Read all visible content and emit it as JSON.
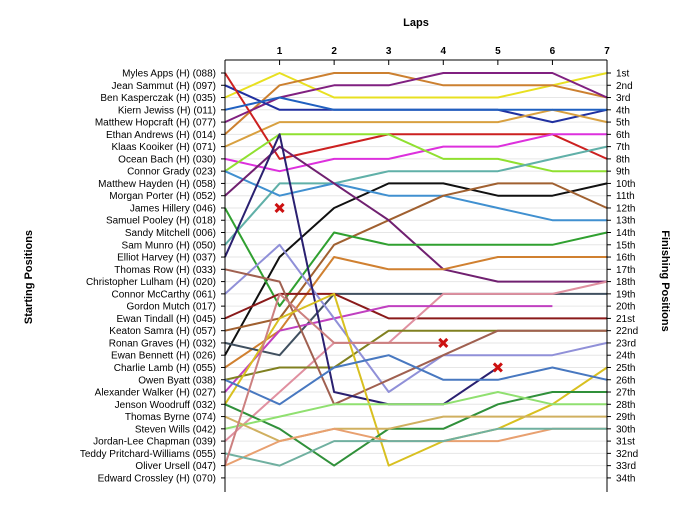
{
  "chart_data": {
    "type": "line",
    "title": "",
    "xlabel": "Laps",
    "ylabel_left": "Starting Positions",
    "ylabel_right": "Finishing Positions",
    "x": [
      0,
      1,
      2,
      3,
      4,
      5,
      6,
      7
    ],
    "lap_labels": [
      "1",
      "2",
      "3",
      "4",
      "5",
      "6",
      "7"
    ],
    "ylim": [
      1,
      34
    ],
    "grid": true,
    "starting_labels": [
      "Myles Apps (H) (088)",
      "Jean Sammut (H) (097)",
      "Ben Kasperczak (H) (035)",
      "Kiern Jewiss (H) (011)",
      "Matthew Hopcraft (H) (077)",
      "Ethan Andrews (H) (014)",
      "Klaas Kooiker (H) (071)",
      "Ocean Bach (H) (030)",
      "Connor Grady (023)",
      "Matthew Hayden (H) (058)",
      "Morgan Porter (H) (052)",
      "James Hillery (046)",
      "Samuel Pooley (H) (018)",
      "Sandy Mitchell (006)",
      "Sam Munro (H) (050)",
      "Elliot Harvey (H) (037)",
      "Thomas Row (H) (033)",
      "Christopher Lulham (H) (020)",
      "Connor McCarthy (061)",
      "Gordon Mutch (017)",
      "Ewan Tindall (H) (045)",
      "Keaton Samra (H) (057)",
      "Ronan Graves (H) (032)",
      "Ewan Bennett (H) (026)",
      "Charlie Lamb (H) (055)",
      "Owen Byatt (038)",
      "Alexander Walker (H) (027)",
      "Jenson Woodruff (032)",
      "Thomas Byrne (074)",
      "Steven Wills (042)",
      "Jordan-Lee Chapman (039)",
      "Teddy Pritchard-Williams (055)",
      "Oliver Ursell (047)",
      "Edward Crossley (H) (070)"
    ],
    "finishing_labels": [
      "1st",
      "2nd",
      "3rd",
      "4th",
      "5th",
      "6th",
      "7th",
      "8th",
      "9th",
      "10th",
      "11th",
      "12th",
      "13th",
      "14th",
      "15th",
      "16th",
      "17th",
      "18th",
      "19th",
      "20th",
      "21st",
      "22nd",
      "23rd",
      "24th",
      "25th",
      "26th",
      "27th",
      "28th",
      "29th",
      "30th",
      "31st",
      "32nd",
      "33rd",
      "34th"
    ],
    "series": [
      {
        "color": "#e8e020",
        "positions": [
          3,
          1,
          3,
          3,
          3,
          3,
          2,
          1
        ]
      },
      {
        "color": "#cc8030",
        "positions": [
          6,
          2,
          1,
          1,
          2,
          2,
          2,
          3
        ]
      },
      {
        "color": "#802080",
        "positions": [
          5,
          3,
          2,
          2,
          1,
          1,
          1,
          3
        ]
      },
      {
        "color": "#2030a0",
        "positions": [
          2,
          4,
          4,
          4,
          4,
          4,
          5,
          4
        ]
      },
      {
        "color": "#d8a040",
        "positions": [
          7,
          5,
          5,
          5,
          5,
          5,
          4,
          5
        ]
      },
      {
        "color": "#cc2020",
        "positions": [
          1,
          8,
          7,
          6,
          6,
          6,
          6,
          8
        ]
      },
      {
        "color": "#dd30dd",
        "positions": [
          8,
          9,
          8,
          8,
          7,
          7,
          6,
          6
        ]
      },
      {
        "color": "#90e030",
        "positions": [
          9,
          6,
          6,
          6,
          8,
          8,
          9,
          9
        ]
      },
      {
        "color": "#60b0a8",
        "positions": [
          15,
          10,
          10,
          9,
          9,
          9,
          8,
          7
        ]
      },
      {
        "color": "#101010",
        "positions": [
          24,
          16,
          12,
          10,
          10,
          11,
          11,
          10
        ]
      },
      {
        "color": "#4090d0",
        "positions": [
          9,
          11,
          10,
          11,
          11,
          12,
          13,
          13
        ]
      },
      {
        "color": "#a06030",
        "positions": [
          22,
          21,
          15,
          13,
          11,
          10,
          10,
          12
        ]
      },
      {
        "color": "#702070",
        "positions": [
          11,
          7,
          10,
          13,
          17,
          18,
          18,
          18
        ]
      },
      {
        "color": "#30a030",
        "positions": [
          12,
          20,
          14,
          15,
          15,
          15,
          15,
          14
        ]
      },
      {
        "color": "#d08030",
        "positions": [
          25,
          22,
          16,
          17,
          17,
          16,
          16,
          16
        ]
      },
      {
        "color": "#405060",
        "positions": [
          23,
          24,
          19,
          19,
          19,
          19,
          19,
          19
        ]
      },
      {
        "color": "#8a1a1a",
        "positions": [
          21,
          19,
          19,
          21,
          21,
          21,
          21,
          21
        ]
      },
      {
        "color": "#e090a0",
        "positions": [
          31,
          27,
          23,
          23,
          19,
          19,
          19,
          18
        ]
      },
      {
        "color": "#c040c0",
        "positions": [
          27,
          22,
          21,
          20,
          20,
          20,
          20
        ]
      },
      {
        "color": "#808020",
        "positions": [
          26,
          25,
          25,
          22,
          22,
          22,
          22,
          22
        ]
      },
      {
        "color": "#9090d8",
        "positions": [
          19,
          15,
          21,
          27,
          24,
          24,
          24,
          23
        ]
      },
      {
        "color": "#a06050",
        "positions": [
          17,
          18,
          28,
          26,
          24,
          22,
          22,
          22
        ]
      },
      {
        "color": "#2a2070",
        "positions": [
          16,
          6,
          27,
          28,
          28,
          25
        ]
      },
      {
        "color": "#d8c020",
        "positions": [
          28,
          21,
          19,
          33,
          31,
          30,
          28,
          25
        ]
      },
      {
        "color": "#4878c0",
        "positions": [
          26,
          28,
          25,
          24,
          26,
          26,
          25,
          26
        ]
      },
      {
        "color": "#30903a",
        "positions": [
          28,
          30,
          33,
          30,
          30,
          28,
          27,
          27
        ]
      },
      {
        "color": "#90e070",
        "positions": [
          30,
          29,
          28,
          28,
          28,
          27,
          28,
          28
        ]
      },
      {
        "color": "#d0b060",
        "positions": [
          29,
          31,
          30,
          30,
          29,
          29,
          29,
          29
        ]
      },
      {
        "color": "#e8a070",
        "positions": [
          33,
          31,
          30,
          31,
          31,
          31,
          30,
          30
        ]
      },
      {
        "color": "#70b0a0",
        "positions": [
          32,
          33,
          31,
          31,
          31,
          30,
          30,
          30
        ]
      },
      {
        "color": "#cc8080",
        "positions": [
          33,
          19,
          23,
          23,
          23
        ]
      },
      {
        "color": "#2060c0",
        "positions": [
          4,
          3,
          4,
          4,
          4,
          4,
          4,
          4
        ]
      }
    ],
    "retirements": [
      {
        "lap": 1,
        "position": 12
      },
      {
        "lap": 4,
        "position": 23
      },
      {
        "lap": 5,
        "position": 25
      }
    ]
  }
}
